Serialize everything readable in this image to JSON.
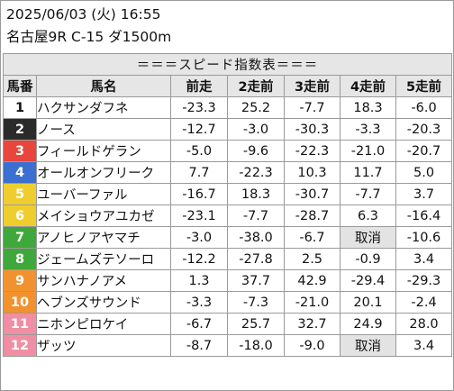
{
  "header": {
    "datetime": "2025/06/03 (火) 16:55",
    "race": "名古屋9R C-15 ダ1500m"
  },
  "table": {
    "banner": "＝＝＝スピード指数表＝＝＝",
    "columns": [
      "馬番",
      "馬名",
      "前走",
      "2走前",
      "3走前",
      "4走前",
      "5走前"
    ],
    "rows": [
      {
        "num": "1",
        "name": "ハクサンダフネ",
        "bg": "#ffffff",
        "fg": "#111111",
        "vals": [
          "-23.3",
          "25.2",
          "-7.7",
          "18.3",
          "-6.0"
        ]
      },
      {
        "num": "2",
        "name": "ノース",
        "bg": "#2b2b2b",
        "fg": "#ffffff",
        "vals": [
          "-12.7",
          "-3.0",
          "-30.3",
          "-3.3",
          "-20.3"
        ]
      },
      {
        "num": "3",
        "name": "フィールドゲラン",
        "bg": "#e8453c",
        "fg": "#ffffff",
        "vals": [
          "-5.0",
          "-9.6",
          "-22.3",
          "-21.0",
          "-20.7"
        ]
      },
      {
        "num": "4",
        "name": "オールオンフリーク",
        "bg": "#3b6fd1",
        "fg": "#ffffff",
        "vals": [
          "7.7",
          "-22.3",
          "10.3",
          "11.7",
          "5.0"
        ]
      },
      {
        "num": "5",
        "name": "ユーバーファル",
        "bg": "#f0cd2e",
        "fg": "#ffffff",
        "vals": [
          "-16.7",
          "18.3",
          "-30.7",
          "-7.7",
          "3.7"
        ]
      },
      {
        "num": "6",
        "name": "メイショウアユカゼ",
        "bg": "#f0cd2e",
        "fg": "#ffffff",
        "vals": [
          "-23.1",
          "-7.7",
          "-28.7",
          "6.3",
          "-16.4"
        ]
      },
      {
        "num": "7",
        "name": "アノヒノアヤマチ",
        "bg": "#3ea83a",
        "fg": "#ffffff",
        "vals": [
          "-3.0",
          "-38.0",
          "-6.7",
          "取消",
          "-10.6"
        ]
      },
      {
        "num": "8",
        "name": "ジェームズテソーロ",
        "bg": "#3ea83a",
        "fg": "#ffffff",
        "vals": [
          "-12.2",
          "-27.8",
          "2.5",
          "-0.9",
          "3.4"
        ]
      },
      {
        "num": "9",
        "name": "サンハナノアメ",
        "bg": "#f2922e",
        "fg": "#ffffff",
        "vals": [
          "1.3",
          "37.7",
          "42.9",
          "-29.4",
          "-29.3"
        ]
      },
      {
        "num": "10",
        "name": "ヘブンズサウンド",
        "bg": "#f2922e",
        "fg": "#ffffff",
        "vals": [
          "-3.3",
          "-7.3",
          "-21.0",
          "20.1",
          "-2.4"
        ]
      },
      {
        "num": "11",
        "name": "ニホンピロケイ",
        "bg": "#f08fa3",
        "fg": "#ffffff",
        "vals": [
          "-6.7",
          "25.7",
          "32.7",
          "24.9",
          "28.0"
        ]
      },
      {
        "num": "12",
        "name": "ザッツ",
        "bg": "#f08fa3",
        "fg": "#ffffff",
        "vals": [
          "-8.7",
          "-18.0",
          "-9.0",
          "取消",
          "3.4"
        ]
      }
    ]
  },
  "colors": {
    "header_bg": "#e6e6e6",
    "border": "#9a9a9a",
    "cancel_bg": "#e3e3e3"
  }
}
